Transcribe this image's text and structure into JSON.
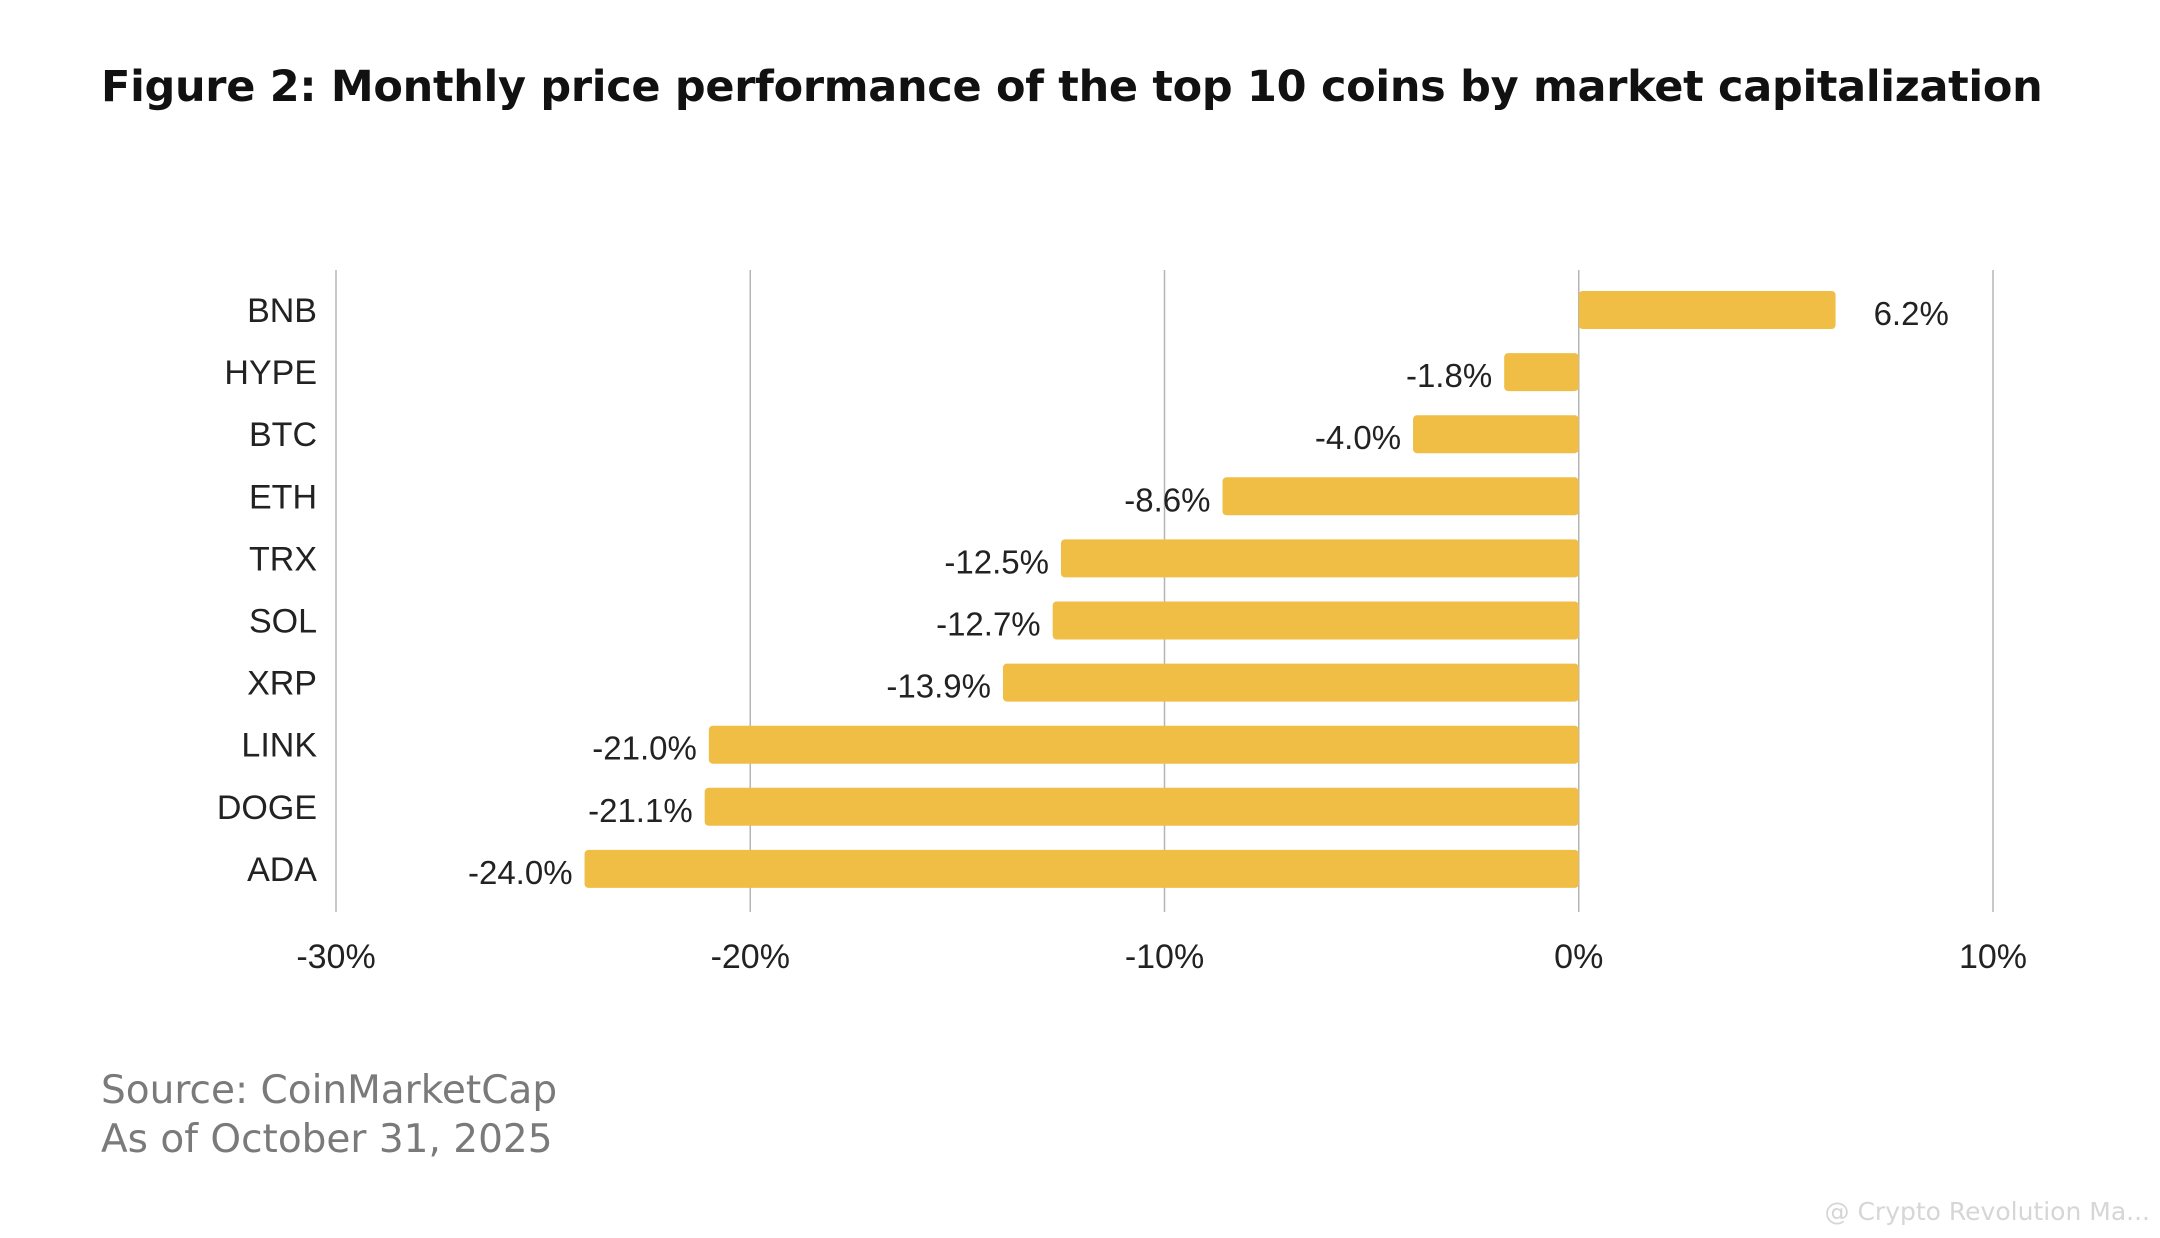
{
  "header": {
    "title": "Figure 2: Monthly price performance of the top 10 coins by market capitalization"
  },
  "chart_data": {
    "type": "bar",
    "orientation": "horizontal",
    "categories": [
      "BNB",
      "HYPE",
      "BTC",
      "ETH",
      "TRX",
      "SOL",
      "XRP",
      "LINK",
      "DOGE",
      "ADA"
    ],
    "values": [
      6.2,
      -1.8,
      -4.0,
      -8.6,
      -12.5,
      -12.7,
      -13.9,
      -21.0,
      -21.1,
      -24.0
    ],
    "data_labels": [
      "6.2%",
      "-1.8%",
      "-4.0%",
      "-8.6%",
      "-12.5%",
      "-12.7%",
      "-13.9%",
      "-21.0%",
      "-21.1%",
      "-24.0%"
    ],
    "xlim": [
      -30,
      10
    ],
    "x_ticks": [
      -30,
      -20,
      -10,
      0,
      10
    ],
    "x_tick_labels": [
      "-30%",
      "-20%",
      "-10%",
      "0%",
      "10%"
    ],
    "xlabel": "",
    "ylabel": "",
    "grid": "vertical",
    "legend": "none",
    "bar_color": "#F0BE45",
    "grid_color": "#b5b5b5"
  },
  "footer": {
    "source": "Source: CoinMarketCap",
    "date": "As of October 31, 2025"
  },
  "watermark": {
    "text": "@ Crypto Revolution Ma..."
  }
}
